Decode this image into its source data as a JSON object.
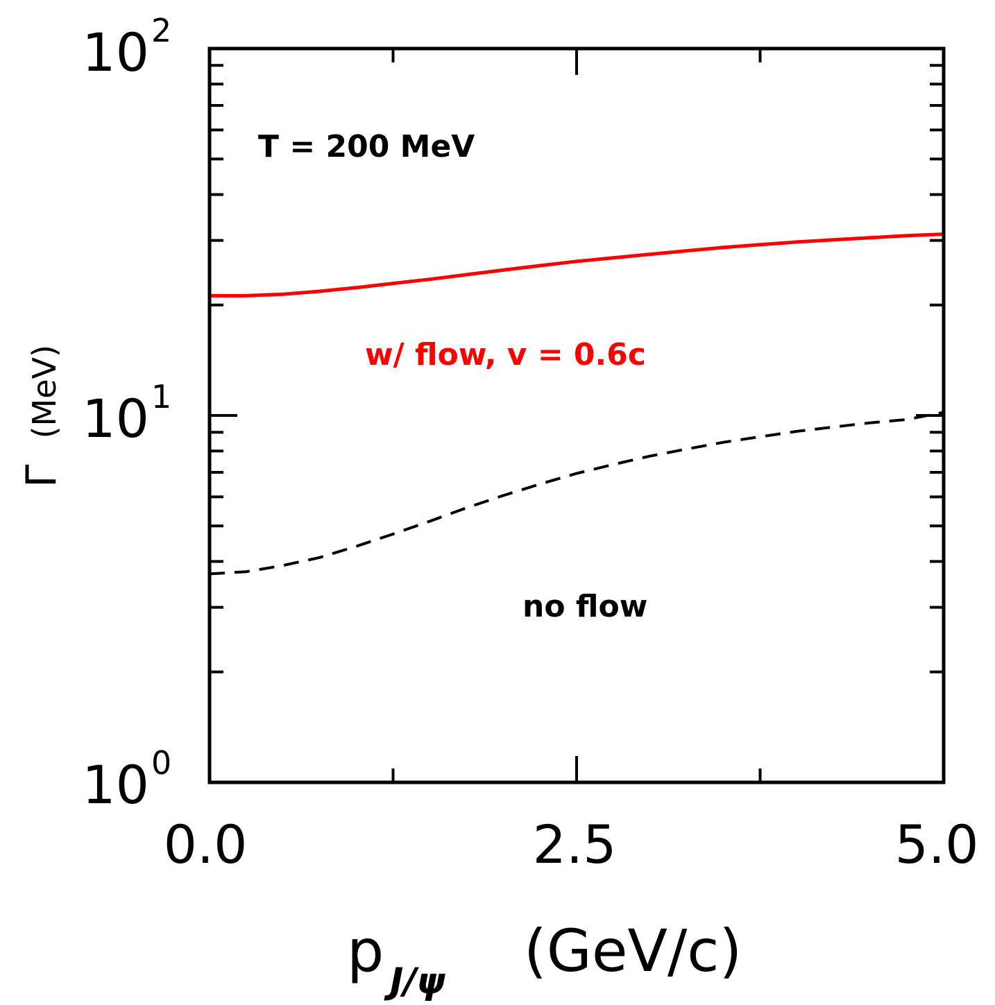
{
  "chart_data": {
    "type": "line",
    "xlabel": {
      "main": "p",
      "subscript": "J/ψ",
      "unit": "(GeV/c)"
    },
    "ylabel": {
      "symbol": "Γ",
      "unit": "(MeV)"
    },
    "xlim": [
      0.0,
      5.0
    ],
    "ylim": [
      1,
      100
    ],
    "yscale": "log",
    "x_tick_labels": [
      "0.0",
      "2.5",
      "5.0"
    ],
    "y_tick_labels": [
      {
        "base": "10",
        "exp": "0",
        "value": 1
      },
      {
        "base": "10",
        "exp": "1",
        "value": 10
      },
      {
        "base": "10",
        "exp": "2",
        "value": 100
      }
    ],
    "grid": false,
    "series": [
      {
        "label": "w/ flow, v = 0.6c",
        "color": "#ff0000",
        "style": "solid",
        "x": [
          0.0,
          0.25,
          0.5,
          0.75,
          1.0,
          1.25,
          1.5,
          1.75,
          2.0,
          2.25,
          2.5,
          2.75,
          3.0,
          3.25,
          3.5,
          3.75,
          4.0,
          4.25,
          4.5,
          4.75,
          5.0
        ],
        "y": [
          21.2,
          21.2,
          21.4,
          21.8,
          22.3,
          22.9,
          23.5,
          24.2,
          24.9,
          25.6,
          26.3,
          26.9,
          27.5,
          28.1,
          28.7,
          29.2,
          29.7,
          30.1,
          30.5,
          30.9,
          31.2
        ]
      },
      {
        "label": "no flow",
        "color": "#000000",
        "style": "dashed",
        "x": [
          0.0,
          0.25,
          0.5,
          0.75,
          1.0,
          1.25,
          1.5,
          1.75,
          2.0,
          2.25,
          2.5,
          2.75,
          3.0,
          3.25,
          3.5,
          3.75,
          4.0,
          4.25,
          4.5,
          4.75,
          5.0
        ],
        "y": [
          3.7,
          3.75,
          3.9,
          4.1,
          4.4,
          4.75,
          5.15,
          5.6,
          6.05,
          6.5,
          6.95,
          7.35,
          7.75,
          8.1,
          8.45,
          8.75,
          9.05,
          9.3,
          9.55,
          9.75,
          10.2
        ]
      }
    ],
    "annotations": [
      {
        "text": "T = 200 MeV",
        "color": "#000000"
      },
      {
        "text": "w/ flow, v = 0.6c",
        "color": "#ff0000"
      },
      {
        "text": "no flow",
        "color": "#000000"
      }
    ]
  }
}
